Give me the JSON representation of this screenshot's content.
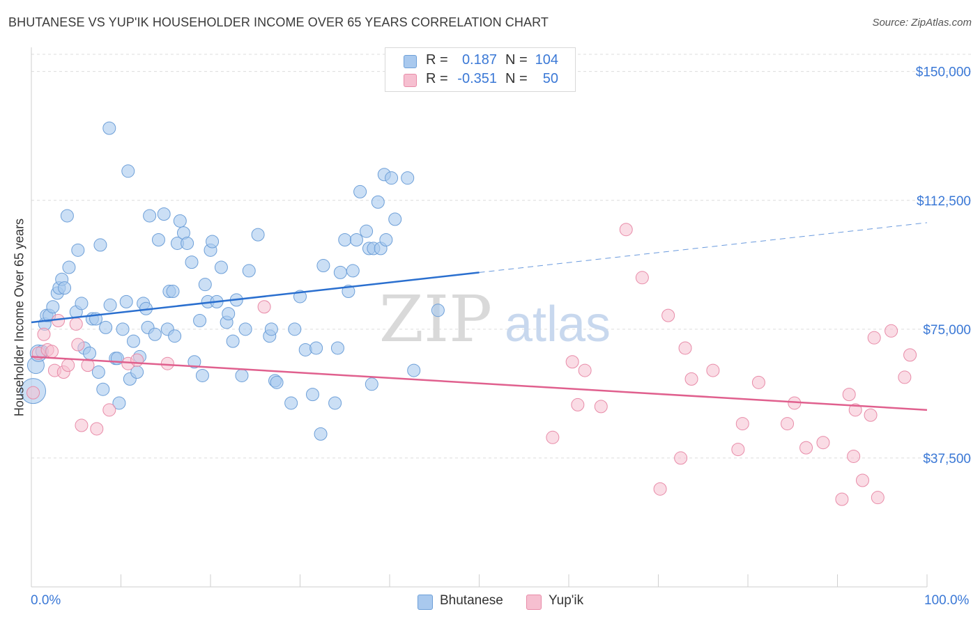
{
  "title": "BHUTANESE VS YUP'IK HOUSEHOLDER INCOME OVER 65 YEARS CORRELATION CHART",
  "source": "Source: ZipAtlas.com",
  "watermark": {
    "zip": "ZIP",
    "atlas": "atlas"
  },
  "legend": {
    "rows": [
      {
        "r_label": "R =",
        "r_value": "0.187",
        "n_label": "N =",
        "n_value": "104"
      },
      {
        "r_label": "R =",
        "r_value": "-0.351",
        "n_label": "N =",
        "n_value": "50"
      }
    ]
  },
  "bottom_legend": {
    "series1": "Bhutanese",
    "series2": "Yup'ik"
  },
  "colors": {
    "bhutanese_fill": "#a9c9ee",
    "bhutanese_stroke": "#6d9fd8",
    "bhutanese_line": "#2a6fcf",
    "yupik_fill": "#f6bfd0",
    "yupik_stroke": "#e88ba8",
    "yupik_line": "#e0608e",
    "axis_text": "#3a78d6",
    "grid": "#dcdcdc"
  },
  "chart_data": {
    "type": "scatter",
    "xlabel": "",
    "ylabel": "Householder Income Over 65 years",
    "xlim": [
      0,
      100
    ],
    "ylim": [
      0,
      155000
    ],
    "x_tick_labels": [
      "0.0%",
      "100.0%"
    ],
    "y_ticks": [
      37500,
      75000,
      112500,
      150000
    ],
    "y_tick_labels": [
      "$37,500",
      "$75,000",
      "$112,500",
      "$150,000"
    ],
    "grid": true,
    "legend_position": "top-center",
    "series": [
      {
        "name": "Bhutanese",
        "trend": {
          "solid": [
            [
              0,
              77000
            ],
            [
              50,
              91500
            ]
          ],
          "dashed": [
            [
              50,
              91500
            ],
            [
              100,
              106000
            ]
          ]
        },
        "points": [
          [
            0.2,
            57000,
            3
          ],
          [
            0.5,
            64500,
            2
          ],
          [
            0.8,
            68000,
            2
          ],
          [
            1.2,
            68500,
            1
          ],
          [
            1.5,
            76500,
            1
          ],
          [
            1.7,
            79000,
            1
          ],
          [
            2.0,
            79000,
            1
          ],
          [
            2.4,
            81500,
            1
          ],
          [
            2.9,
            85500,
            1
          ],
          [
            3.1,
            87000,
            1
          ],
          [
            3.4,
            89500,
            1
          ],
          [
            3.7,
            87000,
            1
          ],
          [
            4.2,
            93000,
            1
          ],
          [
            4.0,
            108000,
            1
          ],
          [
            5.2,
            98000,
            1
          ],
          [
            5.0,
            80000,
            1
          ],
          [
            5.6,
            82500,
            1
          ],
          [
            5.9,
            69500,
            1
          ],
          [
            6.5,
            68000,
            1
          ],
          [
            6.8,
            78000,
            1
          ],
          [
            7.2,
            78000,
            1
          ],
          [
            7.5,
            62500,
            1
          ],
          [
            7.7,
            99500,
            1
          ],
          [
            8.0,
            57500,
            1
          ],
          [
            8.3,
            75500,
            1
          ],
          [
            8.8,
            82000,
            1
          ],
          [
            8.7,
            133500,
            1
          ],
          [
            9.4,
            66500,
            1
          ],
          [
            9.6,
            66500,
            1
          ],
          [
            9.8,
            53500,
            1
          ],
          [
            10.2,
            75000,
            1
          ],
          [
            10.6,
            83000,
            1
          ],
          [
            10.8,
            121000,
            1
          ],
          [
            11.0,
            60500,
            1
          ],
          [
            11.4,
            71500,
            1
          ],
          [
            11.8,
            62500,
            1
          ],
          [
            12.1,
            67000,
            1
          ],
          [
            12.5,
            82500,
            1
          ],
          [
            12.8,
            81000,
            1
          ],
          [
            13.0,
            75500,
            1
          ],
          [
            13.2,
            108000,
            1
          ],
          [
            13.8,
            73500,
            1
          ],
          [
            14.2,
            101000,
            1
          ],
          [
            14.8,
            108500,
            1
          ],
          [
            15.2,
            75000,
            1
          ],
          [
            15.4,
            86000,
            1
          ],
          [
            15.8,
            86000,
            1
          ],
          [
            16.0,
            73000,
            1
          ],
          [
            16.3,
            100000,
            1
          ],
          [
            16.6,
            106500,
            1
          ],
          [
            17.0,
            103000,
            1
          ],
          [
            17.4,
            100000,
            1
          ],
          [
            17.9,
            94500,
            1
          ],
          [
            18.2,
            65500,
            1
          ],
          [
            18.8,
            77500,
            1
          ],
          [
            19.1,
            61500,
            1
          ],
          [
            19.4,
            88000,
            1
          ],
          [
            19.7,
            83000,
            1
          ],
          [
            20.0,
            98000,
            1
          ],
          [
            20.2,
            100500,
            1
          ],
          [
            20.7,
            83000,
            1
          ],
          [
            21.2,
            93000,
            1
          ],
          [
            21.8,
            77000,
            1
          ],
          [
            22.0,
            79500,
            1
          ],
          [
            22.5,
            71500,
            1
          ],
          [
            22.9,
            83500,
            1
          ],
          [
            23.5,
            61500,
            1
          ],
          [
            23.9,
            75000,
            1
          ],
          [
            24.3,
            92000,
            1
          ],
          [
            25.3,
            102500,
            1
          ],
          [
            26.6,
            73000,
            1
          ],
          [
            26.8,
            75000,
            1
          ],
          [
            27.2,
            60000,
            1
          ],
          [
            27.4,
            59500,
            1
          ],
          [
            29.0,
            53500,
            1
          ],
          [
            29.4,
            75000,
            1
          ],
          [
            30.0,
            84500,
            1
          ],
          [
            30.6,
            69000,
            1
          ],
          [
            31.4,
            56000,
            1
          ],
          [
            31.8,
            69500,
            1
          ],
          [
            32.3,
            44500,
            1
          ],
          [
            32.6,
            93500,
            1
          ],
          [
            33.9,
            53500,
            1
          ],
          [
            34.2,
            69500,
            1
          ],
          [
            34.5,
            91500,
            1
          ],
          [
            35.0,
            101000,
            1
          ],
          [
            35.4,
            86000,
            1
          ],
          [
            35.9,
            92000,
            1
          ],
          [
            36.3,
            101000,
            1
          ],
          [
            36.7,
            115000,
            1
          ],
          [
            37.4,
            103500,
            1
          ],
          [
            37.7,
            98500,
            1
          ],
          [
            38.0,
            59000,
            1
          ],
          [
            38.2,
            98500,
            1
          ],
          [
            38.7,
            112000,
            1
          ],
          [
            39.0,
            98500,
            1
          ],
          [
            39.4,
            120000,
            1
          ],
          [
            39.6,
            101000,
            1
          ],
          [
            40.2,
            119000,
            1
          ],
          [
            40.6,
            107000,
            1
          ],
          [
            42.0,
            119000,
            1
          ],
          [
            42.7,
            63000,
            1
          ],
          [
            45.4,
            80500,
            1
          ]
        ]
      },
      {
        "name": "Yup'ik",
        "trend": {
          "solid": [
            [
              0,
              67000
            ],
            [
              100,
              51500
            ]
          ]
        },
        "points": [
          [
            0.2,
            56500,
            1
          ],
          [
            0.8,
            68000,
            1
          ],
          [
            1.4,
            73500,
            1
          ],
          [
            1.8,
            69000,
            1
          ],
          [
            2.3,
            68500,
            1
          ],
          [
            2.6,
            63000,
            1
          ],
          [
            3.0,
            77500,
            1
          ],
          [
            3.6,
            62500,
            1
          ],
          [
            4.1,
            64500,
            1
          ],
          [
            5.0,
            76500,
            1
          ],
          [
            5.2,
            70500,
            1
          ],
          [
            5.6,
            47000,
            1
          ],
          [
            6.3,
            64500,
            1
          ],
          [
            7.3,
            46000,
            1
          ],
          [
            8.7,
            51500,
            1
          ],
          [
            10.8,
            65000,
            1
          ],
          [
            11.8,
            66000,
            1
          ],
          [
            15.2,
            65000,
            1
          ],
          [
            26.0,
            81500,
            1
          ],
          [
            58.2,
            43500,
            1
          ],
          [
            60.4,
            65500,
            1
          ],
          [
            61.0,
            53000,
            1
          ],
          [
            61.8,
            63000,
            1
          ],
          [
            63.6,
            52500,
            1
          ],
          [
            66.4,
            104000,
            1
          ],
          [
            68.2,
            90000,
            1
          ],
          [
            70.2,
            28500,
            1
          ],
          [
            71.1,
            79000,
            1
          ],
          [
            72.5,
            37500,
            1
          ],
          [
            73.0,
            69500,
            1
          ],
          [
            73.7,
            60500,
            1
          ],
          [
            76.1,
            63000,
            1
          ],
          [
            78.9,
            40000,
            1
          ],
          [
            79.4,
            47500,
            1
          ],
          [
            81.2,
            59500,
            1
          ],
          [
            84.4,
            47500,
            1
          ],
          [
            85.2,
            53500,
            1
          ],
          [
            86.5,
            40500,
            1
          ],
          [
            88.4,
            42000,
            1
          ],
          [
            90.5,
            25500,
            1
          ],
          [
            91.3,
            56000,
            1
          ],
          [
            91.8,
            38000,
            1
          ],
          [
            92.0,
            51500,
            1
          ],
          [
            92.8,
            31000,
            1
          ],
          [
            93.7,
            50000,
            1
          ],
          [
            94.1,
            72500,
            1
          ],
          [
            94.5,
            26000,
            1
          ],
          [
            96.0,
            74500,
            1
          ],
          [
            97.5,
            61000,
            1
          ],
          [
            98.1,
            67500,
            1
          ]
        ]
      }
    ]
  }
}
